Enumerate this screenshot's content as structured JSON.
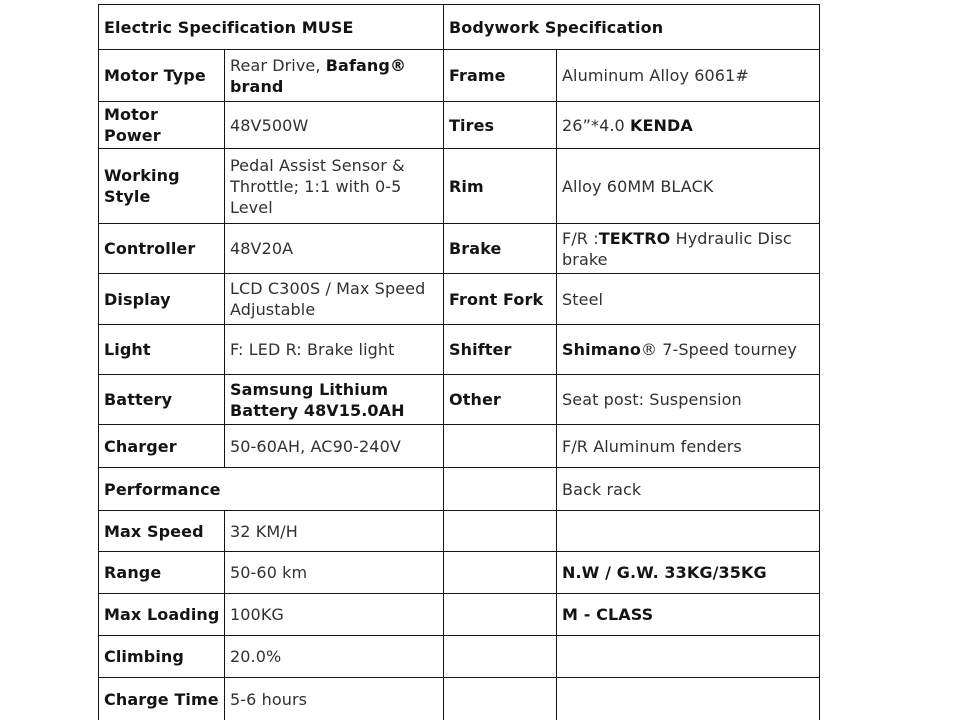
{
  "table": {
    "header": {
      "left_title": "Electric Specification MUSE",
      "right_title": "Bodywork Specification"
    },
    "rows": [
      {
        "height": 52,
        "left": {
          "label": "Motor Type",
          "value": [
            {
              "text": "Rear Drive, ",
              "bold": false
            },
            {
              "text": "Bafang® brand",
              "bold": true
            }
          ]
        },
        "right": {
          "label": "Frame",
          "value": [
            {
              "text": "Aluminum Alloy 6061#",
              "bold": false
            }
          ]
        }
      },
      {
        "height": 44,
        "left": {
          "label": "Motor Power",
          "value": [
            {
              "text": "48V500W",
              "bold": false
            }
          ]
        },
        "right": {
          "label": "Tires",
          "value": [
            {
              "text": "26”*4.0 ",
              "bold": false
            },
            {
              "text": "KENDA",
              "bold": true
            }
          ]
        }
      },
      {
        "height": 75,
        "left": {
          "label": "Working Style",
          "value": [
            {
              "text": "Pedal Assist Sensor & Throttle; 1:1 with 0-5 Level",
              "bold": false
            }
          ]
        },
        "right": {
          "label": "Rim",
          "value": [
            {
              "text": "Alloy 60MM BLACK",
              "bold": false
            }
          ]
        }
      },
      {
        "height": 50,
        "left": {
          "label": "Controller",
          "value": [
            {
              "text": "48V20A",
              "bold": false
            }
          ]
        },
        "right": {
          "label": "Brake",
          "value": [
            {
              "text": "F/R :",
              "bold": false
            },
            {
              "text": "TEKTRO",
              "bold": true
            },
            {
              "text": " Hydraulic Disc brake",
              "bold": false
            }
          ]
        }
      },
      {
        "height": 51,
        "left": {
          "label": "Display",
          "value": [
            {
              "text": "LCD C300S / Max Speed Adjustable",
              "bold": false
            }
          ]
        },
        "right": {
          "label": "Front Fork",
          "value": [
            {
              "text": "Steel",
              "bold": false
            }
          ]
        }
      },
      {
        "height": 50,
        "left": {
          "label": "Light",
          "value": [
            {
              "text": "F: LED R: Brake light",
              "bold": false
            }
          ]
        },
        "right": {
          "label": "Shifter",
          "value": [
            {
              "text": "Shimano",
              "bold": true
            },
            {
              "text": "® 7-Speed tourney",
              "bold": false
            }
          ]
        }
      },
      {
        "height": 50,
        "left": {
          "label": "Battery",
          "value": [
            {
              "text": "Samsung Lithium Battery 48V15.0AH",
              "bold": true
            }
          ]
        },
        "right": {
          "label": "Other",
          "value": [
            {
              "text": "Seat post: Suspension",
              "bold": false
            }
          ]
        }
      },
      {
        "height": 43,
        "left": {
          "label": "Charger",
          "value": [
            {
              "text": "50-60AH, AC90-240V",
              "bold": false
            }
          ]
        },
        "right": {
          "label": "",
          "value": [
            {
              "text": "F/R Aluminum fenders",
              "bold": false
            }
          ]
        }
      },
      {
        "height": 43,
        "left": {
          "label": "Performance",
          "span": 2,
          "value": null
        },
        "right": {
          "label": "",
          "value": [
            {
              "text": "Back rack",
              "bold": false
            }
          ]
        }
      },
      {
        "height": 41,
        "left": {
          "label": "Max Speed",
          "value": [
            {
              "text": "32 KM/H",
              "bold": false
            }
          ]
        },
        "right": {
          "label": "",
          "value": []
        }
      },
      {
        "height": 42,
        "left": {
          "label": "Range",
          "value": [
            {
              "text": "50-60 km",
              "bold": false
            }
          ]
        },
        "right": {
          "label": "",
          "value": [
            {
              "text": "N.W / G.W. 33KG/35KG",
              "bold": true
            }
          ]
        }
      },
      {
        "height": 42,
        "left": {
          "label": "Max Loading",
          "value": [
            {
              "text": "100KG",
              "bold": false
            }
          ]
        },
        "right": {
          "label": "",
          "value": [
            {
              "text": "M - CLASS",
              "bold": true
            }
          ]
        }
      },
      {
        "height": 42,
        "left": {
          "label": "Climbing",
          "value": [
            {
              "text": "20.0%",
              "bold": false
            }
          ]
        },
        "right": {
          "label": "",
          "value": []
        }
      },
      {
        "height": 43,
        "left": {
          "label": "Charge Time",
          "value": [
            {
              "text": "5-6 hours",
              "bold": false
            }
          ]
        },
        "right": {
          "label": "",
          "value": []
        }
      }
    ]
  }
}
